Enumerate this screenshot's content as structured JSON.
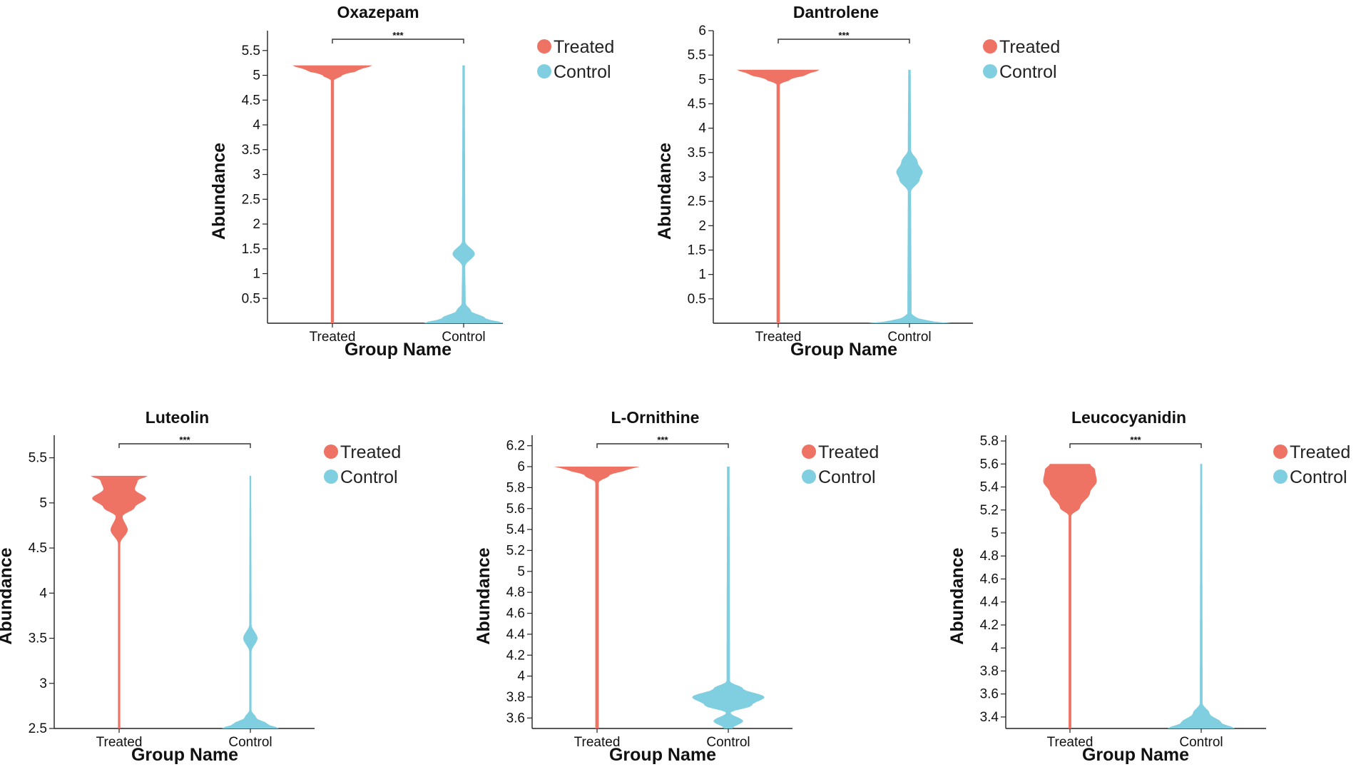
{
  "chart_data": [
    {
      "type": "violin",
      "title": "Oxazepam",
      "xlabel": "Group Name",
      "ylabel": "Abundance",
      "categories": [
        "Treated",
        "Control"
      ],
      "yticks": [
        "0.5",
        "1",
        "1.5",
        "2",
        "2.5",
        "3",
        "3.5",
        "4",
        "4.5",
        "5",
        "5.5"
      ],
      "ylim": [
        0,
        5.9
      ],
      "significance": "***",
      "legend": [
        "Treated",
        "Control"
      ],
      "series": [
        {
          "name": "Treated",
          "color": "#ee7364",
          "min": 0,
          "max": 5.2,
          "density": [
            [
              0,
              0.04
            ],
            [
              4.9,
              0.04
            ],
            [
              5.0,
              0.25
            ],
            [
              5.1,
              0.65
            ],
            [
              5.2,
              1.0
            ]
          ]
        },
        {
          "name": "Control",
          "color": "#7fcfe0",
          "min": 0,
          "max": 5.2,
          "density": [
            [
              0,
              1.0
            ],
            [
              0.1,
              0.55
            ],
            [
              0.25,
              0.18
            ],
            [
              0.4,
              0.05
            ],
            [
              1.15,
              0.04
            ],
            [
              1.4,
              0.28
            ],
            [
              1.65,
              0.04
            ],
            [
              5.2,
              0.03
            ]
          ]
        }
      ]
    },
    {
      "type": "violin",
      "title": "Dantrolene",
      "xlabel": "Group Name",
      "ylabel": "Abundance",
      "categories": [
        "Treated",
        "Control"
      ],
      "yticks": [
        "0.5",
        "1",
        "1.5",
        "2",
        "2.5",
        "3",
        "3.5",
        "4",
        "4.5",
        "5",
        "5.5",
        "6"
      ],
      "ylim": [
        0,
        6.0
      ],
      "significance": "***",
      "legend": [
        "Treated",
        "Control"
      ],
      "series": [
        {
          "name": "Treated",
          "color": "#ee7364",
          "min": 0,
          "max": 5.2,
          "density": [
            [
              0,
              0.04
            ],
            [
              4.9,
              0.04
            ],
            [
              5.0,
              0.3
            ],
            [
              5.1,
              0.7
            ],
            [
              5.2,
              1.0
            ]
          ]
        },
        {
          "name": "Control",
          "color": "#7fcfe0",
          "min": 0,
          "max": 5.2,
          "density": [
            [
              0,
              1.0
            ],
            [
              0.05,
              0.45
            ],
            [
              0.12,
              0.15
            ],
            [
              0.2,
              0.05
            ],
            [
              2.7,
              0.04
            ],
            [
              2.95,
              0.25
            ],
            [
              3.1,
              0.32
            ],
            [
              3.3,
              0.2
            ],
            [
              3.55,
              0.04
            ],
            [
              5.2,
              0.03
            ]
          ]
        }
      ]
    },
    {
      "type": "violin",
      "title": "Luteolin",
      "xlabel": "Group Name",
      "ylabel": "Abundance",
      "categories": [
        "Treated",
        "Control"
      ],
      "yticks": [
        "2.5",
        "3",
        "3.5",
        "4",
        "4.5",
        "5",
        "5.5"
      ],
      "ylim": [
        2.5,
        5.75
      ],
      "significance": "***",
      "legend": [
        "Treated",
        "Control"
      ],
      "series": [
        {
          "name": "Treated",
          "color": "#ee7364",
          "min": 2.5,
          "max": 5.3,
          "density": [
            [
              2.5,
              0.04
            ],
            [
              4.55,
              0.04
            ],
            [
              4.7,
              0.3
            ],
            [
              4.85,
              0.12
            ],
            [
              4.95,
              0.55
            ],
            [
              5.05,
              0.95
            ],
            [
              5.15,
              0.55
            ],
            [
              5.25,
              0.65
            ],
            [
              5.3,
              1.0
            ]
          ]
        },
        {
          "name": "Control",
          "color": "#7fcfe0",
          "min": 2.5,
          "max": 5.3,
          "density": [
            [
              2.5,
              1.0
            ],
            [
              2.55,
              0.6
            ],
            [
              2.62,
              0.2
            ],
            [
              2.7,
              0.04
            ],
            [
              3.35,
              0.04
            ],
            [
              3.5,
              0.25
            ],
            [
              3.65,
              0.04
            ],
            [
              5.3,
              0.03
            ]
          ]
        }
      ]
    },
    {
      "type": "violin",
      "title": "L-Ornithine",
      "xlabel": "Group Name",
      "ylabel": "Abundance",
      "categories": [
        "Treated",
        "Control"
      ],
      "yticks": [
        "3.6",
        "3.8",
        "4",
        "4.2",
        "4.4",
        "4.6",
        "4.8",
        "5",
        "5.2",
        "5.4",
        "5.6",
        "5.8",
        "6",
        "6.2"
      ],
      "ylim": [
        3.5,
        6.3
      ],
      "significance": "***",
      "legend": [
        "Treated",
        "Control"
      ],
      "series": [
        {
          "name": "Treated",
          "color": "#ee7364",
          "min": 3.5,
          "max": 6.0,
          "density": [
            [
              3.5,
              0.04
            ],
            [
              5.85,
              0.04
            ],
            [
              5.92,
              0.3
            ],
            [
              5.97,
              0.7
            ],
            [
              6.0,
              1.0
            ]
          ]
        },
        {
          "name": "Control",
          "color": "#7fcfe0",
          "min": 3.5,
          "max": 6.0,
          "density": [
            [
              3.5,
              0.1
            ],
            [
              3.57,
              0.35
            ],
            [
              3.65,
              0.05
            ],
            [
              3.72,
              0.55
            ],
            [
              3.8,
              0.85
            ],
            [
              3.88,
              0.35
            ],
            [
              3.95,
              0.04
            ],
            [
              6.0,
              0.03
            ]
          ]
        }
      ]
    },
    {
      "type": "violin",
      "title": "Leucocyanidin",
      "xlabel": "Group Name",
      "ylabel": "Abundance",
      "categories": [
        "Treated",
        "Control"
      ],
      "yticks": [
        "3.4",
        "3.6",
        "3.8",
        "4",
        "4.2",
        "4.4",
        "4.6",
        "4.8",
        "5",
        "5.2",
        "5.4",
        "5.6",
        "5.8"
      ],
      "ylim": [
        3.3,
        5.85
      ],
      "significance": "***",
      "legend": [
        "Treated",
        "Control"
      ],
      "series": [
        {
          "name": "Treated",
          "color": "#ee7364",
          "min": 3.3,
          "max": 5.6,
          "density": [
            [
              3.3,
              0.04
            ],
            [
              5.15,
              0.04
            ],
            [
              5.22,
              0.3
            ],
            [
              5.35,
              0.6
            ],
            [
              5.45,
              0.8
            ],
            [
              5.55,
              0.75
            ],
            [
              5.6,
              0.6
            ]
          ]
        },
        {
          "name": "Control",
          "color": "#7fcfe0",
          "min": 3.3,
          "max": 5.6,
          "density": [
            [
              3.3,
              1.0
            ],
            [
              3.35,
              0.6
            ],
            [
              3.43,
              0.25
            ],
            [
              3.52,
              0.04
            ],
            [
              5.6,
              0.03
            ]
          ]
        }
      ]
    }
  ]
}
